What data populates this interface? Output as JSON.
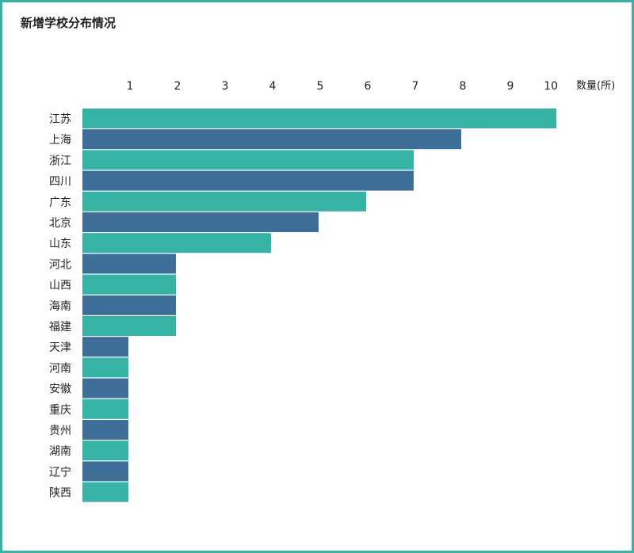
{
  "chart_data": {
    "type": "bar",
    "orientation": "horizontal",
    "title": "新增学校分布情况",
    "xlabel": "数量(所)",
    "ylabel": "",
    "xlim": [
      0,
      10
    ],
    "xticks": [
      1,
      2,
      3,
      4,
      5,
      6,
      7,
      8,
      9,
      10
    ],
    "categories": [
      "江苏",
      "上海",
      "浙江",
      "四川",
      "广东",
      "北京",
      "山东",
      "河北",
      "山西",
      "海南",
      "福建",
      "天津",
      "河南",
      "安徽",
      "重庆",
      "贵州",
      "湖南",
      "辽宁",
      "陕西"
    ],
    "values": [
      10,
      8,
      7,
      7,
      6,
      5,
      4,
      2,
      2,
      2,
      2,
      1,
      1,
      1,
      1,
      1,
      1,
      1,
      1
    ],
    "colors": [
      "#37b3a6",
      "#3d6f99"
    ],
    "color_pattern": "alternating",
    "axis_position": "top",
    "grid": false,
    "legend": "none"
  }
}
